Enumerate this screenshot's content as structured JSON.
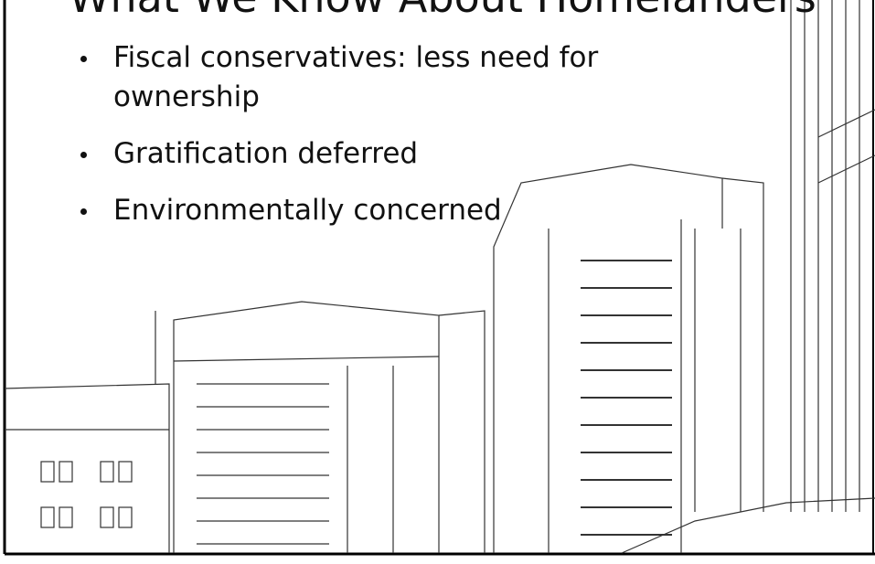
{
  "slide": {
    "title": "What We Know About Homelanders",
    "bullets": [
      "Fiscal conservatives: less need for ownership",
      "Gratification deferred",
      "Environmentally concerned"
    ]
  }
}
